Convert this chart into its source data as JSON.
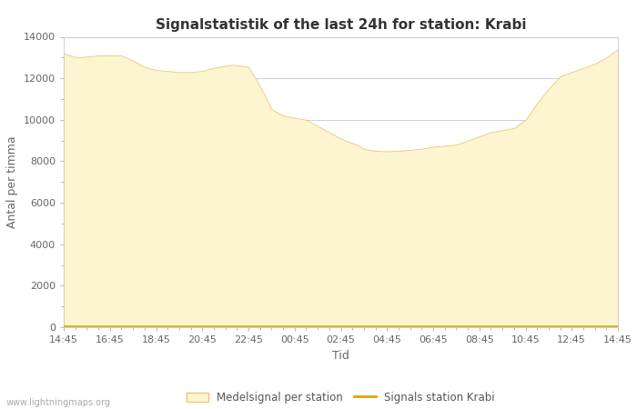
{
  "title": "Signalstatistik of the last 24h for station: Krabi",
  "ylabel": "Antal per timma",
  "xlabel": "Tid",
  "watermark": "www.lightningmaps.org",
  "legend_fill_label": "Medelsignal per station",
  "legend_line_label": "Signals station Krabi",
  "fill_color": "#fdf5d0",
  "fill_edge_color": "#e8c878",
  "line_color": "#e8a000",
  "ylim": [
    0,
    14000
  ],
  "yticks": [
    0,
    2000,
    4000,
    6000,
    8000,
    10000,
    12000,
    14000
  ],
  "xtick_labels": [
    "14:45",
    "16:45",
    "18:45",
    "20:45",
    "22:45",
    "00:45",
    "02:45",
    "04:45",
    "06:45",
    "08:45",
    "10:45",
    "12:45",
    "14:45"
  ],
  "background_color": "#ffffff",
  "grid_color": "#c8c8c8",
  "title_fontsize": 11,
  "axis_fontsize": 9,
  "tick_fontsize": 8,
  "x_data": [
    0,
    0.3,
    0.6,
    1.0,
    1.5,
    2.0,
    2.5,
    3.0,
    3.5,
    4.0,
    4.5,
    5.0,
    5.5,
    6.0,
    6.3,
    6.7,
    7.0,
    7.3,
    7.7,
    8.0,
    8.3,
    8.7,
    9.0,
    9.5,
    10.0,
    10.5,
    11.0,
    11.5,
    12.0,
    12.3,
    12.7,
    13.0,
    13.5,
    14.0,
    14.5,
    15.0,
    15.5,
    16.0,
    16.5,
    17.0,
    17.5,
    18.0,
    18.5,
    19.0,
    19.5,
    20.0,
    20.5,
    21.0,
    21.5,
    22.0,
    22.5,
    23.0,
    23.5,
    24.0
  ],
  "y_data": [
    13200,
    13100,
    13000,
    13050,
    13100,
    13100,
    13100,
    12850,
    12550,
    12400,
    12350,
    12300,
    12300,
    12350,
    12450,
    12550,
    12600,
    12650,
    12600,
    12550,
    12000,
    11200,
    10500,
    10200,
    10100,
    10000,
    9700,
    9400,
    9100,
    8950,
    8800,
    8600,
    8500,
    8480,
    8500,
    8550,
    8600,
    8700,
    8750,
    8800,
    9000,
    9200,
    9400,
    9500,
    9600,
    10000,
    10800,
    11500,
    12100,
    12300,
    12500,
    12700,
    13000,
    13400
  ],
  "y_line": [
    30,
    30,
    30,
    30,
    30,
    30,
    30,
    30,
    30,
    30,
    30,
    30,
    30,
    30,
    30,
    30,
    30,
    30,
    30,
    30,
    30,
    30,
    30,
    30,
    30,
    30,
    30,
    30,
    30,
    30,
    30,
    30,
    30,
    30,
    30,
    30,
    30,
    30,
    30,
    30,
    30,
    30,
    30,
    30,
    30,
    30,
    30,
    30,
    30,
    30,
    30,
    30,
    30,
    30
  ]
}
